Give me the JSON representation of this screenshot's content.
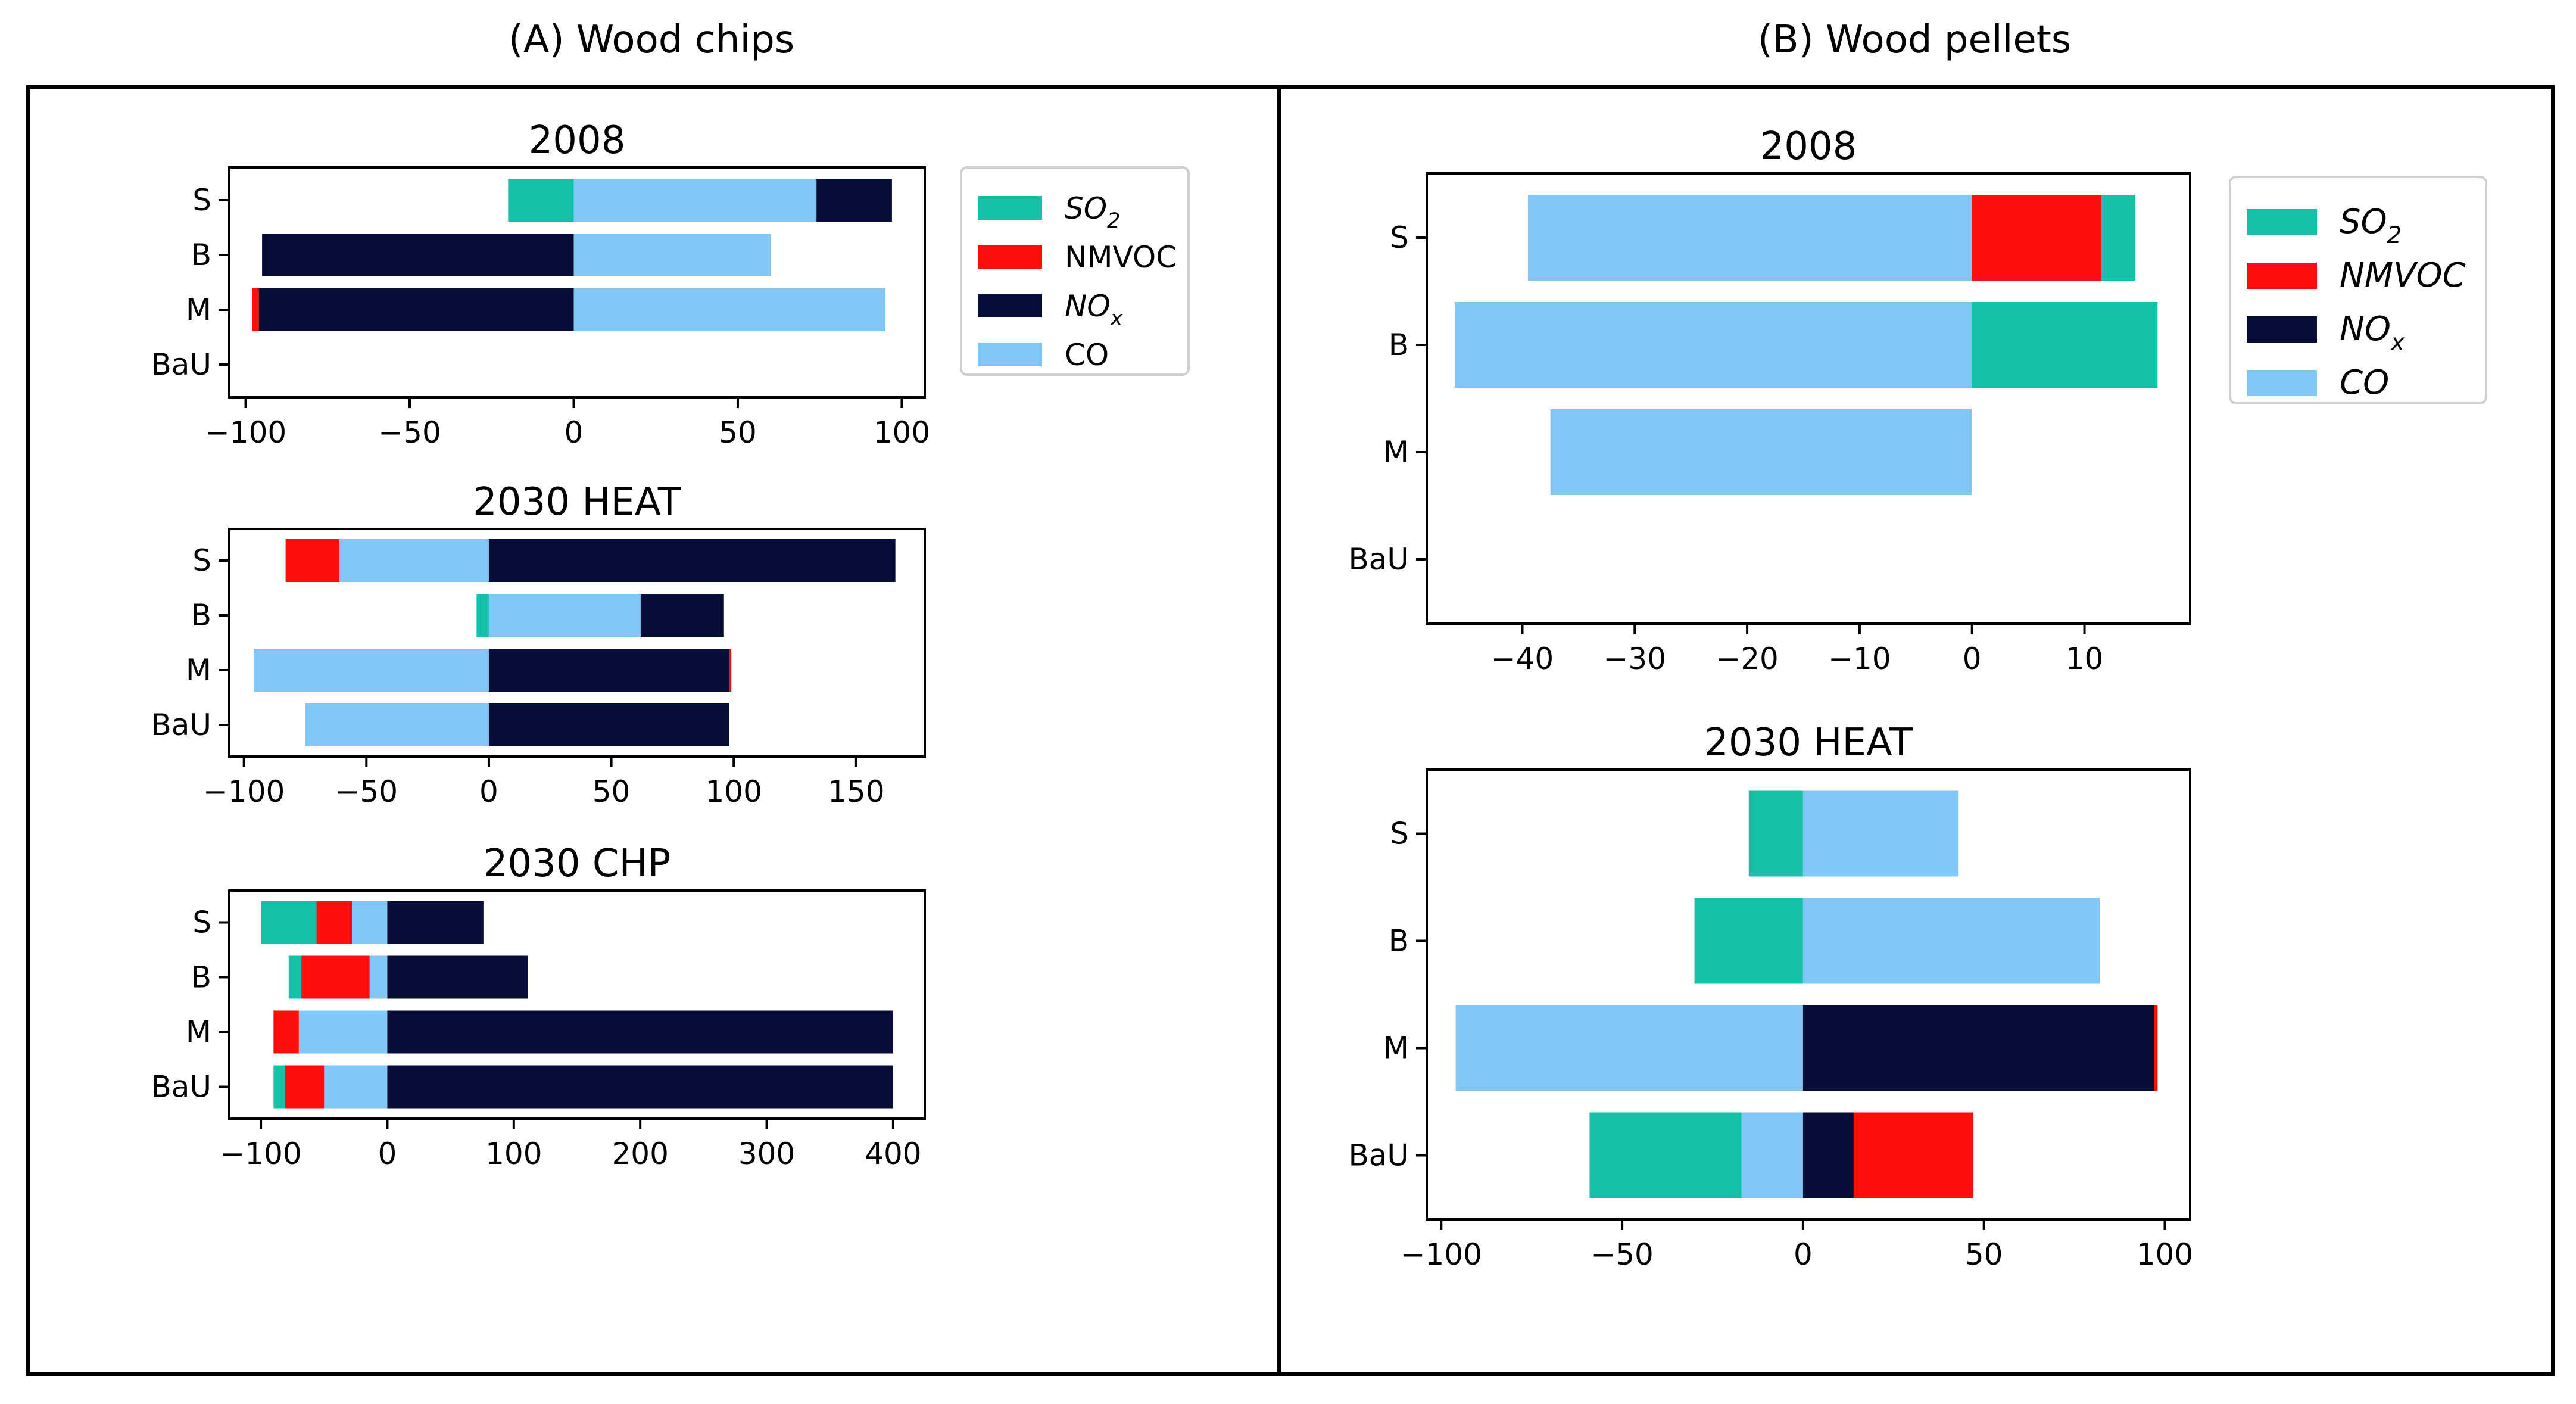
{
  "panels": [
    {
      "title": "(A) Wood chips"
    },
    {
      "title": "(B) Wood pellets"
    }
  ],
  "colors": {
    "SO2": "#15c0a8",
    "NMVOC": "#ff0d0d",
    "NOx": "#060d36",
    "CO": "#80c7f5"
  },
  "legends": [
    {
      "entries": [
        {
          "key": "SO2",
          "label": "SO",
          "sub": "2",
          "italic": true
        },
        {
          "key": "NMVOC",
          "label": "NMVOC",
          "sub": "",
          "italic": false
        },
        {
          "key": "NOx",
          "label": "NO",
          "sub": "x",
          "italic": true
        },
        {
          "key": "CO",
          "label": "CO",
          "sub": "",
          "italic": false
        }
      ]
    },
    {
      "entries": [
        {
          "key": "SO2",
          "label": "SO",
          "sub": "2",
          "italic": true
        },
        {
          "key": "NMVOC",
          "label": "NMVOC",
          "sub": "",
          "italic": true
        },
        {
          "key": "NOx",
          "label": "NO",
          "sub": "x",
          "italic": true
        },
        {
          "key": "CO",
          "label": "CO",
          "sub": "",
          "italic": true
        }
      ]
    }
  ],
  "chart_data": [
    {
      "type": "bar",
      "orientation": "horizontal",
      "stacked": "diverging",
      "panel": "(A) Wood chips",
      "title": "2008",
      "categories": [
        "S",
        "B",
        "M",
        "BaU"
      ],
      "xlim": [
        -105,
        107
      ],
      "xticks": [
        -100,
        -50,
        0,
        50,
        100
      ],
      "bars": [
        {
          "category": "S",
          "negative": [
            {
              "s": "SO2",
              "v": 20
            }
          ],
          "positive": [
            {
              "s": "CO",
              "v": 74
            },
            {
              "s": "NOx",
              "v": 23
            }
          ]
        },
        {
          "category": "B",
          "negative": [
            {
              "s": "NOx",
              "v": 95
            }
          ],
          "positive": [
            {
              "s": "CO",
              "v": 60
            }
          ]
        },
        {
          "category": "M",
          "negative": [
            {
              "s": "NOx",
              "v": 96
            },
            {
              "s": "NMVOC",
              "v": 2
            }
          ],
          "positive": [
            {
              "s": "CO",
              "v": 95
            }
          ]
        },
        {
          "category": "BaU",
          "negative": [],
          "positive": []
        }
      ]
    },
    {
      "type": "bar",
      "orientation": "horizontal",
      "stacked": "diverging",
      "panel": "(A) Wood chips",
      "title": "2030 HEAT",
      "categories": [
        "S",
        "B",
        "M",
        "BaU"
      ],
      "xlim": [
        -106,
        178
      ],
      "xticks": [
        -100,
        -50,
        0,
        50,
        100,
        150
      ],
      "bars": [
        {
          "category": "S",
          "negative": [
            {
              "s": "CO",
              "v": 61
            },
            {
              "s": "NMVOC",
              "v": 22
            }
          ],
          "positive": [
            {
              "s": "NOx",
              "v": 166
            }
          ]
        },
        {
          "category": "B",
          "negative": [
            {
              "s": "SO2",
              "v": 5
            }
          ],
          "positive": [
            {
              "s": "CO",
              "v": 62
            },
            {
              "s": "NOx",
              "v": 34
            }
          ]
        },
        {
          "category": "M",
          "negative": [
            {
              "s": "CO",
              "v": 96
            }
          ],
          "positive": [
            {
              "s": "NOx",
              "v": 98
            },
            {
              "s": "NMVOC",
              "v": 1
            }
          ]
        },
        {
          "category": "BaU",
          "negative": [
            {
              "s": "CO",
              "v": 75
            }
          ],
          "positive": [
            {
              "s": "NOx",
              "v": 98
            }
          ]
        }
      ]
    },
    {
      "type": "bar",
      "orientation": "horizontal",
      "stacked": "diverging",
      "panel": "(A) Wood chips",
      "title": "2030 CHP",
      "categories": [
        "S",
        "B",
        "M",
        "BaU"
      ],
      "xlim": [
        -125,
        425
      ],
      "xticks": [
        -100,
        0,
        100,
        200,
        300,
        400
      ],
      "bars": [
        {
          "category": "S",
          "negative": [
            {
              "s": "CO",
              "v": 28
            },
            {
              "s": "NMVOC",
              "v": 28
            },
            {
              "s": "SO2",
              "v": 44
            }
          ],
          "positive": [
            {
              "s": "NOx",
              "v": 76
            }
          ]
        },
        {
          "category": "B",
          "negative": [
            {
              "s": "CO",
              "v": 14
            },
            {
              "s": "NMVOC",
              "v": 54
            },
            {
              "s": "SO2",
              "v": 10
            }
          ],
          "positive": [
            {
              "s": "NOx",
              "v": 111
            }
          ]
        },
        {
          "category": "M",
          "negative": [
            {
              "s": "CO",
              "v": 70
            },
            {
              "s": "NMVOC",
              "v": 20
            }
          ],
          "positive": [
            {
              "s": "NOx",
              "v": 400
            }
          ]
        },
        {
          "category": "BaU",
          "negative": [
            {
              "s": "CO",
              "v": 50
            },
            {
              "s": "NMVOC",
              "v": 31
            },
            {
              "s": "SO2",
              "v": 9
            }
          ],
          "positive": [
            {
              "s": "NOx",
              "v": 400
            }
          ]
        }
      ]
    },
    {
      "type": "bar",
      "orientation": "horizontal",
      "stacked": "diverging",
      "panel": "(B) Wood pellets",
      "title": "2008",
      "categories": [
        "S",
        "B",
        "M",
        "BaU"
      ],
      "xlim": [
        -48.5,
        19.4
      ],
      "xticks": [
        -40,
        -30,
        -20,
        -10,
        0,
        10
      ],
      "bars": [
        {
          "category": "S",
          "negative": [
            {
              "s": "CO",
              "v": 39.5
            }
          ],
          "positive": [
            {
              "s": "NMVOC",
              "v": 11.5
            },
            {
              "s": "SO2",
              "v": 3
            }
          ]
        },
        {
          "category": "B",
          "negative": [
            {
              "s": "CO",
              "v": 46
            }
          ],
          "positive": [
            {
              "s": "SO2",
              "v": 16.5
            }
          ]
        },
        {
          "category": "M",
          "negative": [
            {
              "s": "CO",
              "v": 37.5
            }
          ],
          "positive": []
        },
        {
          "category": "BaU",
          "negative": [],
          "positive": []
        }
      ]
    },
    {
      "type": "bar",
      "orientation": "horizontal",
      "stacked": "diverging",
      "panel": "(B) Wood pellets",
      "title": "2030 HEAT",
      "categories": [
        "S",
        "B",
        "M",
        "BaU"
      ],
      "xlim": [
        -104,
        107
      ],
      "xticks": [
        -100,
        -50,
        0,
        50,
        100
      ],
      "bars": [
        {
          "category": "S",
          "negative": [
            {
              "s": "SO2",
              "v": 15
            }
          ],
          "positive": [
            {
              "s": "CO",
              "v": 43
            }
          ]
        },
        {
          "category": "B",
          "negative": [
            {
              "s": "SO2",
              "v": 30
            }
          ],
          "positive": [
            {
              "s": "CO",
              "v": 82
            }
          ]
        },
        {
          "category": "M",
          "negative": [
            {
              "s": "CO",
              "v": 96
            }
          ],
          "positive": [
            {
              "s": "NOx",
              "v": 97
            },
            {
              "s": "NMVOC",
              "v": 1
            }
          ]
        },
        {
          "category": "BaU",
          "negative": [
            {
              "s": "CO",
              "v": 17
            },
            {
              "s": "SO2",
              "v": 42
            }
          ],
          "positive": [
            {
              "s": "NOx",
              "v": 14
            },
            {
              "s": "NMVOC",
              "v": 33
            }
          ]
        }
      ]
    }
  ]
}
